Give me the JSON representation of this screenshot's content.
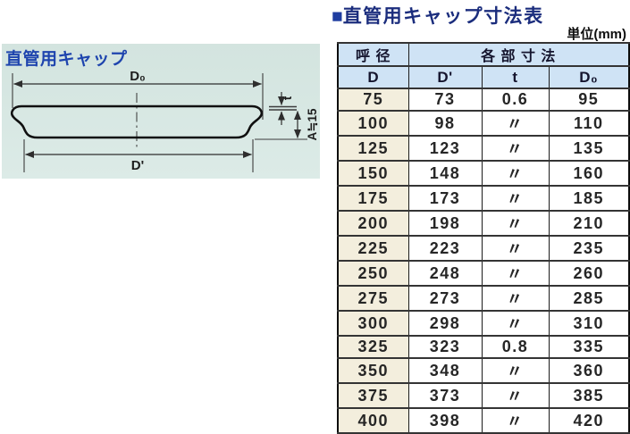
{
  "header": {
    "bullet": "■",
    "title": "直管用キャップ寸法表",
    "unit": "単位(mm)"
  },
  "diagram": {
    "title": "直管用キャップ",
    "labels": {
      "d0": "D₀",
      "dprime": "D'",
      "t": "t",
      "a": "A≒15"
    }
  },
  "table": {
    "header_row1": {
      "nominal": "呼 径",
      "dims": "各 部 寸 法"
    },
    "header_row2": [
      "D",
      "D'",
      "t",
      "D₀"
    ],
    "rows": [
      [
        "75",
        "73",
        "0.6",
        "95"
      ],
      [
        "100",
        "98",
        "〃",
        "110"
      ],
      [
        "125",
        "123",
        "〃",
        "135"
      ],
      [
        "150",
        "148",
        "〃",
        "160"
      ],
      [
        "175",
        "173",
        "〃",
        "185"
      ],
      [
        "200",
        "198",
        "〃",
        "210"
      ],
      [
        "225",
        "223",
        "〃",
        "235"
      ],
      [
        "250",
        "248",
        "〃",
        "260"
      ],
      [
        "275",
        "273",
        "〃",
        "285"
      ],
      [
        "300",
        "298",
        "〃",
        "310"
      ],
      [
        "325",
        "323",
        "0.8",
        "335"
      ],
      [
        "350",
        "348",
        "〃",
        "360"
      ],
      [
        "375",
        "373",
        "〃",
        "385"
      ],
      [
        "400",
        "398",
        "〃",
        "420"
      ]
    ]
  },
  "colors": {
    "accent_blue": "#1e44ae",
    "title_navy": "#1b2d7d",
    "panel_bg": "#d7e6e1",
    "table_header_bg": "#cfe3f5",
    "first_col_bg": "#f3eedd"
  }
}
